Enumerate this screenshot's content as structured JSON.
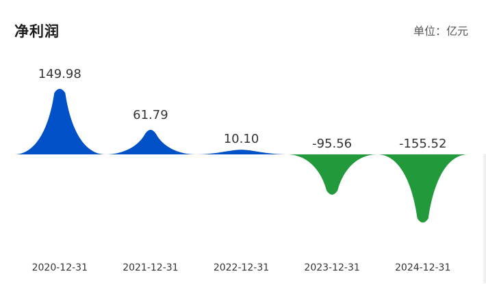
{
  "header": {
    "title": "净利润",
    "unit": "单位：亿元"
  },
  "colors": {
    "positive": "#0050c8",
    "negative": "#22993a",
    "label": "#333333"
  },
  "chart_data": {
    "type": "area",
    "title": "净利润",
    "unit": "亿元",
    "categories": [
      "2020-12-31",
      "2021-12-31",
      "2022-12-31",
      "2023-12-31",
      "2024-12-31"
    ],
    "values": [
      149.98,
      61.79,
      10.1,
      -95.56,
      -155.52
    ],
    "value_labels": [
      "149.98",
      "61.79",
      "10.10",
      "-95.56",
      "-155.52"
    ]
  }
}
